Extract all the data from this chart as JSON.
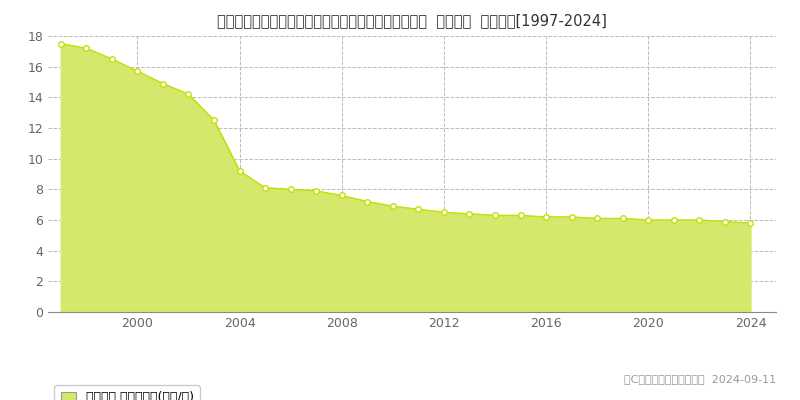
{
  "title": "埼玉県比企郡鳩山町大字大豆戸字七反田上２７９番２  地価公示  地価推移[1997-2024]",
  "years": [
    1997,
    1998,
    1999,
    2000,
    2001,
    2002,
    2003,
    2004,
    2005,
    2006,
    2007,
    2008,
    2009,
    2010,
    2011,
    2012,
    2013,
    2014,
    2015,
    2016,
    2017,
    2018,
    2019,
    2020,
    2021,
    2022,
    2023,
    2024
  ],
  "values": [
    17.5,
    17.2,
    16.5,
    15.7,
    14.9,
    14.2,
    12.5,
    9.2,
    8.1,
    8.0,
    7.9,
    7.6,
    7.2,
    6.9,
    6.7,
    6.5,
    6.4,
    6.3,
    6.3,
    6.2,
    6.2,
    6.1,
    6.1,
    6.0,
    6.0,
    6.0,
    5.9,
    5.8
  ],
  "fill_color": "#d4e96b",
  "line_color": "#c8dd00",
  "marker_color": "#ffffff",
  "marker_edge_color": "#c8dd00",
  "background_color": "#ffffff",
  "grid_color": "#bbbbbb",
  "ylim": [
    0,
    18
  ],
  "yticks": [
    0,
    2,
    4,
    6,
    8,
    10,
    12,
    14,
    16,
    18
  ],
  "xticks": [
    2000,
    2004,
    2008,
    2012,
    2016,
    2020,
    2024
  ],
  "xlabel": "",
  "ylabel": "",
  "legend_label": "地価公示 平均坪単価(万円/坪)",
  "legend_box_color": "#d4e96b",
  "copyright_text": "（C）土地価格ドットコム  2024-09-11",
  "title_fontsize": 10.5,
  "tick_fontsize": 9,
  "legend_fontsize": 9
}
